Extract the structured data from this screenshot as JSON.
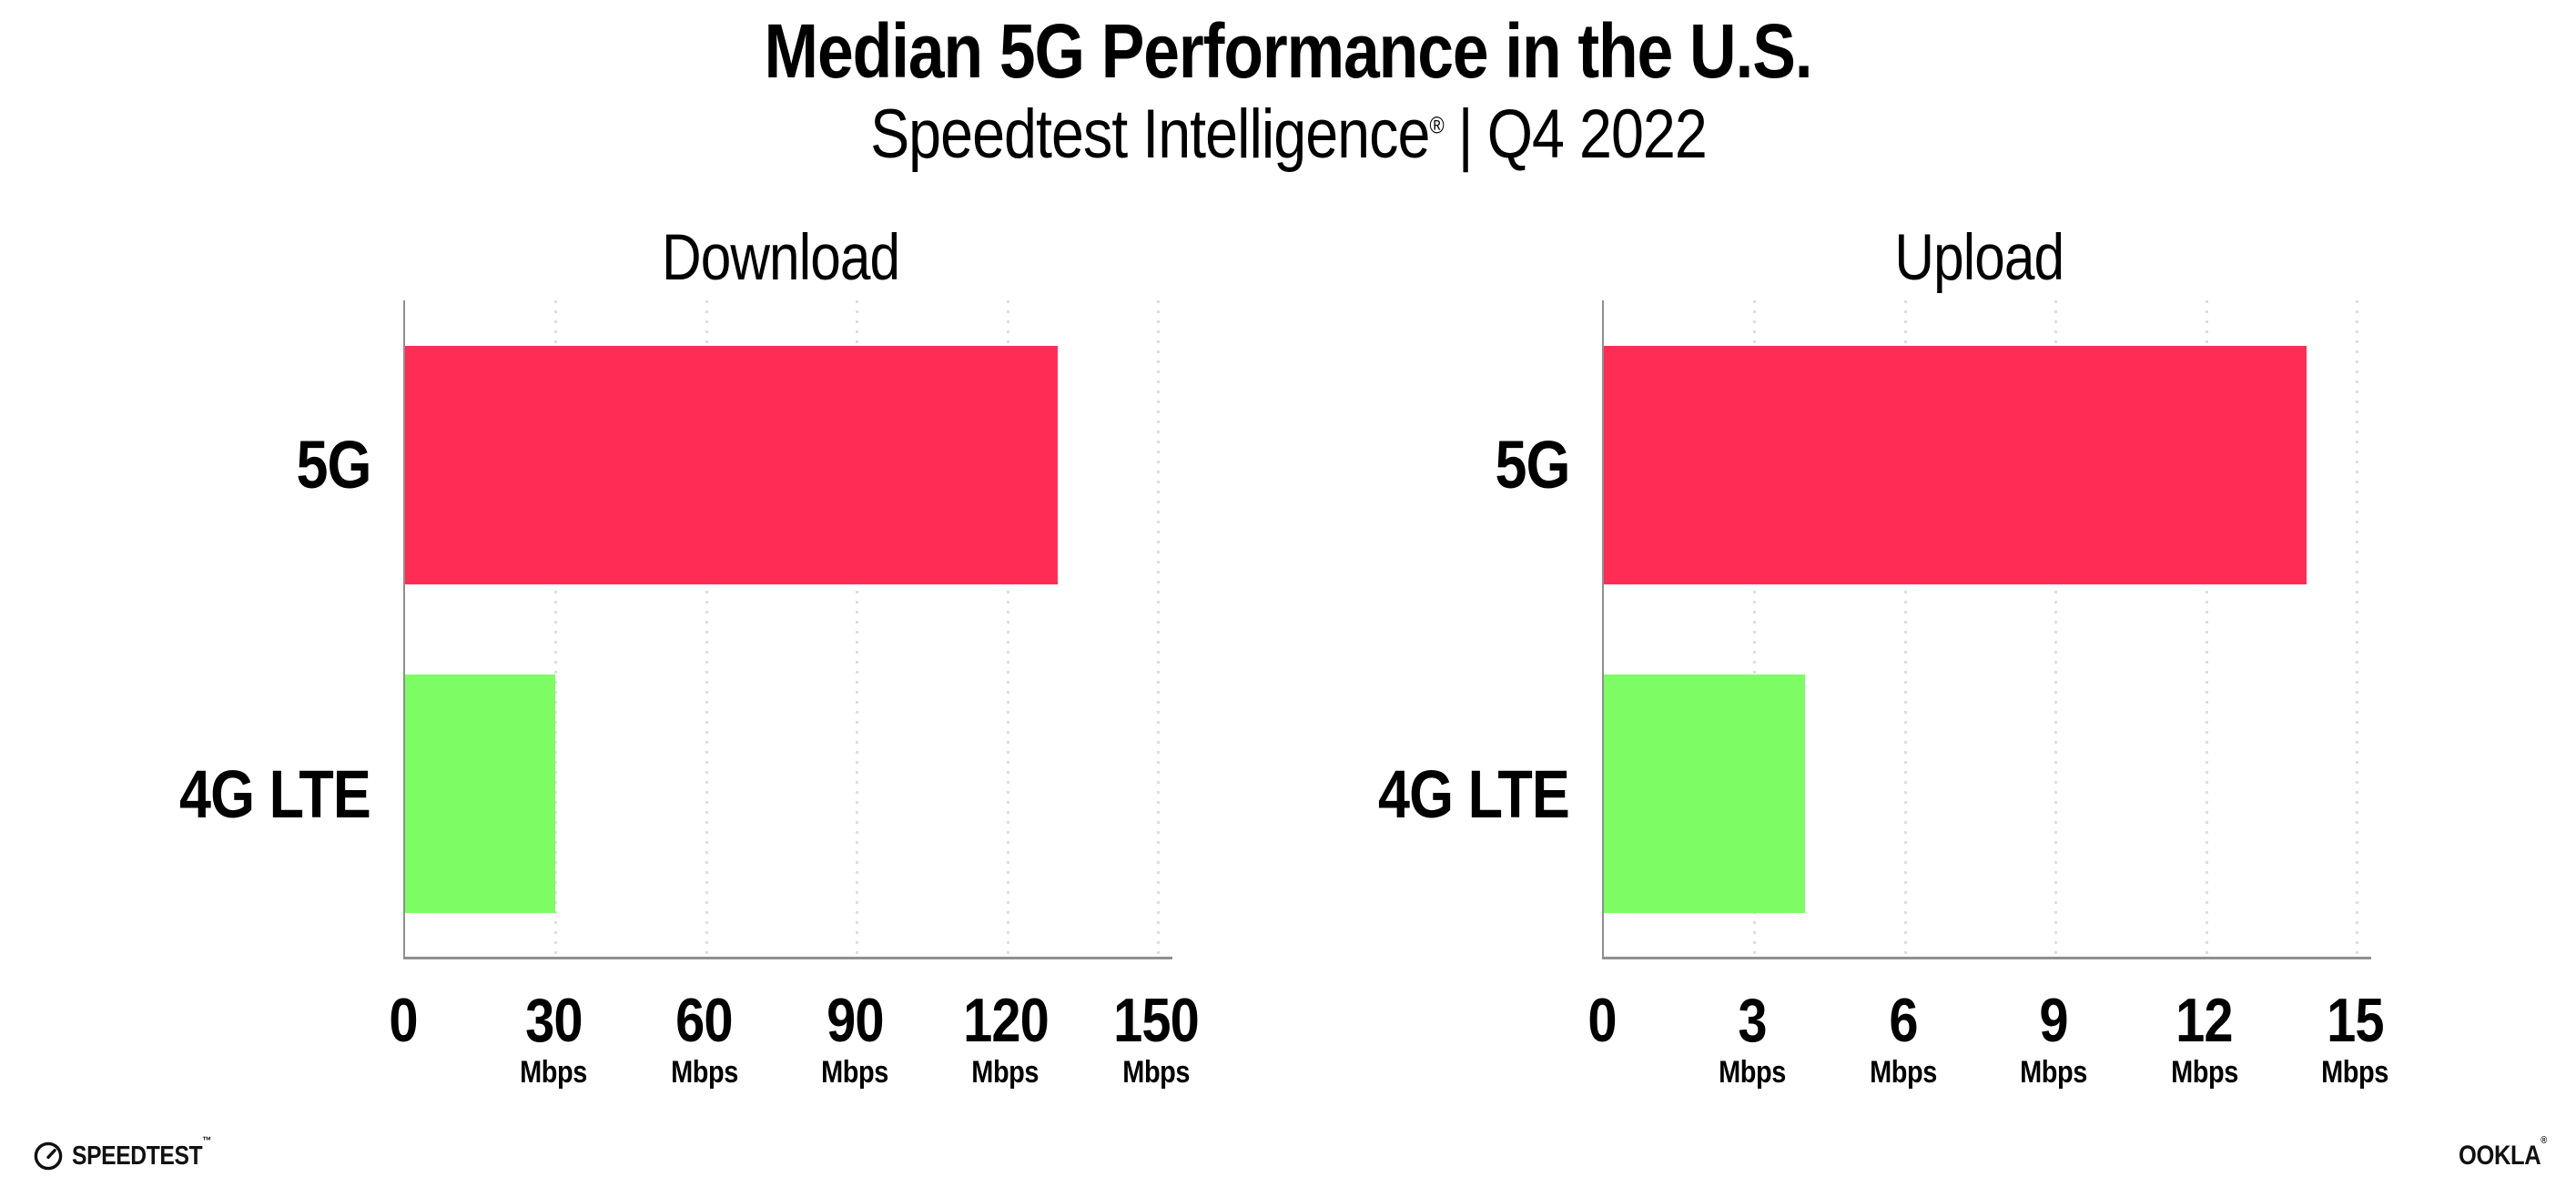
{
  "header": {
    "title": "Median 5G Performance in the U.S.",
    "subtitle_brand": "Speedtest Intelligence",
    "subtitle_reg": "®",
    "subtitle_sep": "|",
    "subtitle_period": "Q4 2022"
  },
  "colors": {
    "bar_5g": "#ff2d55",
    "bar_4g_lte": "#7dfc64",
    "axis": "#8f8f8f",
    "gridline": "#dcdde8",
    "text": "#000000"
  },
  "chart_data": [
    {
      "type": "bar",
      "orientation": "horizontal",
      "title": "Download",
      "categories": [
        "5G",
        "4G LTE"
      ],
      "values": [
        130,
        30
      ],
      "unit": "Mbps",
      "xlim": [
        0,
        150
      ],
      "xticks": [
        0,
        30,
        60,
        90,
        120,
        150
      ],
      "xtick_units": [
        "",
        "Mbps",
        "Mbps",
        "Mbps",
        "Mbps",
        "Mbps"
      ],
      "series_colors": [
        "#ff2d55",
        "#7dfc64"
      ],
      "grid": "vertical-dotted",
      "legend": false
    },
    {
      "type": "bar",
      "orientation": "horizontal",
      "title": "Upload",
      "categories": [
        "5G",
        "4G LTE"
      ],
      "values": [
        14,
        4
      ],
      "unit": "Mbps",
      "xlim": [
        0,
        15
      ],
      "xticks": [
        0,
        3,
        6,
        9,
        12,
        15
      ],
      "xtick_units": [
        "",
        "Mbps",
        "Mbps",
        "Mbps",
        "Mbps",
        "Mbps"
      ],
      "series_colors": [
        "#ff2d55",
        "#7dfc64"
      ],
      "grid": "vertical-dotted",
      "legend": false
    }
  ],
  "footer": {
    "speedtest_logo_text": "SPEEDTEST",
    "speedtest_tm": "™",
    "ookla_logo_text": "OOKLA",
    "ookla_reg": "®"
  }
}
